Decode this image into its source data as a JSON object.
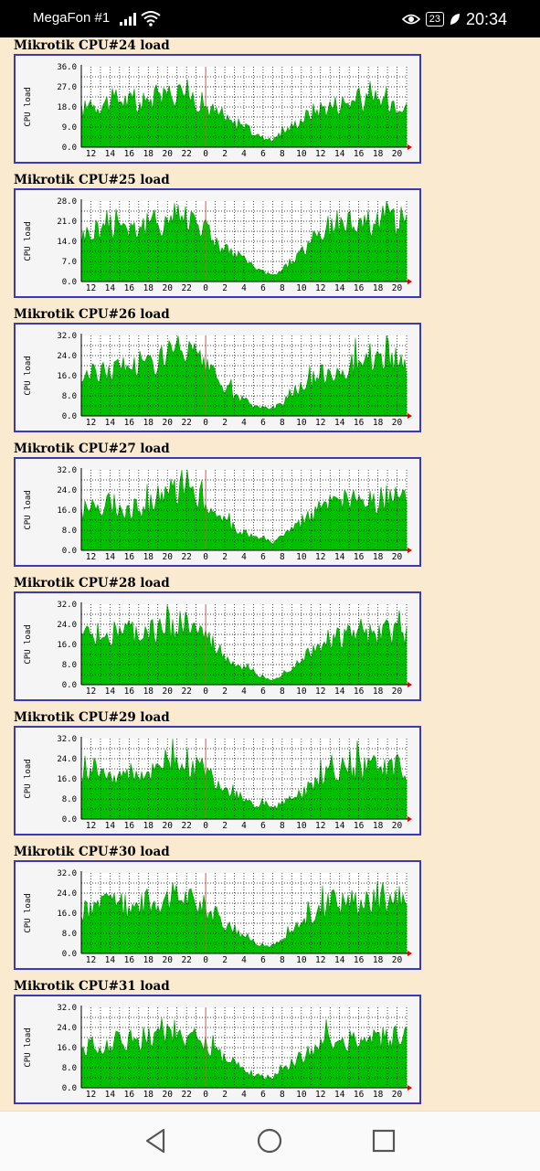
{
  "status_bar": {
    "carrier": "MegaFon #1",
    "battery": "23",
    "time": "20:34",
    "icons": [
      "signal-icon",
      "wifi-icon",
      "eye-icon",
      "battery-icon",
      "leaf-icon"
    ]
  },
  "nav_bar": {
    "icons": [
      "back-icon",
      "home-icon",
      "recents-icon"
    ]
  },
  "colors": {
    "fill": "#00c000",
    "edge": "#00a000",
    "frame": "#3a3ab8",
    "now_line": "#e05050",
    "background": "#faebd0"
  },
  "chart_data": [
    {
      "type": "area",
      "title": "Mikrotik CPU#24 load",
      "ylabel": "CPU load",
      "yticks": [
        "0.0",
        "9.0",
        "18.0",
        "27.0",
        "36.0"
      ],
      "ylim": [
        0,
        36
      ],
      "xticks": [
        "12",
        "14",
        "16",
        "18",
        "20",
        "22",
        "0",
        "2",
        "4",
        "6",
        "8",
        "10",
        "12",
        "14",
        "16",
        "18",
        "20"
      ],
      "x_hours": [
        11,
        12,
        13,
        14,
        15,
        16,
        17,
        18,
        19,
        20,
        21,
        22,
        23,
        0,
        1,
        2,
        3,
        4,
        5,
        6,
        7,
        8,
        9,
        10,
        11,
        12,
        13,
        14,
        15,
        16,
        17,
        18,
        19,
        20,
        21
      ],
      "values": [
        16,
        18,
        19,
        20,
        21,
        20,
        18,
        20,
        22,
        23,
        24,
        24,
        21,
        18,
        15,
        12,
        10,
        9,
        6,
        4,
        3,
        6,
        9,
        12,
        15,
        17,
        18,
        19,
        20,
        20,
        19,
        20,
        21,
        20,
        20
      ],
      "grid": true
    },
    {
      "type": "area",
      "title": "Mikrotik CPU#25 load",
      "ylabel": "CPU load",
      "yticks": [
        "0.0",
        "7.0",
        "14.0",
        "21.0",
        "28.0"
      ],
      "ylim": [
        0,
        28
      ],
      "xticks": [
        "12",
        "14",
        "16",
        "18",
        "20",
        "22",
        "0",
        "2",
        "4",
        "6",
        "8",
        "10",
        "12",
        "14",
        "16",
        "18",
        "20"
      ],
      "x_hours": [
        11,
        12,
        13,
        14,
        15,
        16,
        17,
        18,
        19,
        20,
        21,
        22,
        23,
        0,
        1,
        2,
        3,
        4,
        5,
        6,
        7,
        8,
        9,
        10,
        11,
        12,
        13,
        14,
        15,
        16,
        17,
        18,
        19,
        20,
        21
      ],
      "values": [
        15,
        17,
        18,
        19,
        20,
        19,
        18,
        19,
        20,
        21,
        22,
        22,
        21,
        18,
        14,
        11,
        9,
        7,
        5,
        3,
        2,
        4,
        7,
        10,
        13,
        16,
        18,
        19,
        20,
        21,
        20,
        21,
        22,
        21,
        20
      ],
      "grid": true
    },
    {
      "type": "area",
      "title": "Mikrotik CPU#26 load",
      "ylabel": "CPU load",
      "yticks": [
        "0.0",
        "8.0",
        "16.0",
        "24.0",
        "32.0"
      ],
      "ylim": [
        0,
        32
      ],
      "xticks": [
        "12",
        "14",
        "16",
        "18",
        "20",
        "22",
        "0",
        "2",
        "4",
        "6",
        "8",
        "10",
        "12",
        "14",
        "16",
        "18",
        "20"
      ],
      "x_hours": [
        11,
        12,
        13,
        14,
        15,
        16,
        17,
        18,
        19,
        20,
        21,
        22,
        23,
        0,
        1,
        2,
        3,
        4,
        5,
        6,
        7,
        8,
        9,
        10,
        11,
        12,
        13,
        14,
        15,
        16,
        17,
        18,
        19,
        20,
        21
      ],
      "values": [
        14,
        16,
        17,
        18,
        19,
        20,
        19,
        20,
        22,
        24,
        25,
        25,
        22,
        18,
        15,
        11,
        8,
        6,
        4,
        3,
        3,
        5,
        8,
        11,
        13,
        16,
        17,
        18,
        19,
        20,
        20,
        21,
        22,
        21,
        20
      ],
      "grid": true
    },
    {
      "type": "area",
      "title": "Mikrotik CPU#27 load",
      "ylabel": "CPU load",
      "yticks": [
        "0.0",
        "8.0",
        "16.0",
        "24.0",
        "32.0"
      ],
      "ylim": [
        0,
        32
      ],
      "xticks": [
        "12",
        "14",
        "16",
        "18",
        "20",
        "22",
        "0",
        "2",
        "4",
        "6",
        "8",
        "10",
        "12",
        "14",
        "16",
        "18",
        "20"
      ],
      "x_hours": [
        11,
        12,
        13,
        14,
        15,
        16,
        17,
        18,
        19,
        20,
        21,
        22,
        23,
        0,
        1,
        2,
        3,
        4,
        5,
        6,
        7,
        8,
        9,
        10,
        11,
        12,
        13,
        14,
        15,
        16,
        17,
        18,
        19,
        20,
        21
      ],
      "values": [
        15,
        17,
        18,
        18,
        17,
        16,
        16,
        18,
        20,
        22,
        24,
        24,
        22,
        18,
        14,
        11,
        9,
        7,
        5,
        4,
        3,
        5,
        8,
        11,
        14,
        16,
        17,
        18,
        19,
        19,
        18,
        19,
        20,
        20,
        19
      ],
      "grid": true
    },
    {
      "type": "area",
      "title": "Mikrotik CPU#28 load",
      "ylabel": "CPU load",
      "yticks": [
        "0.0",
        "8.0",
        "16.0",
        "24.0",
        "32.0"
      ],
      "ylim": [
        0,
        32
      ],
      "xticks": [
        "12",
        "14",
        "16",
        "18",
        "20",
        "22",
        "0",
        "2",
        "4",
        "6",
        "8",
        "10",
        "12",
        "14",
        "16",
        "18",
        "20"
      ],
      "x_hours": [
        11,
        12,
        13,
        14,
        15,
        16,
        17,
        18,
        19,
        20,
        21,
        22,
        23,
        0,
        1,
        2,
        3,
        4,
        5,
        6,
        7,
        8,
        9,
        10,
        11,
        12,
        13,
        14,
        15,
        16,
        17,
        18,
        19,
        20,
        21
      ],
      "values": [
        17,
        19,
        20,
        20,
        21,
        20,
        19,
        20,
        21,
        22,
        23,
        23,
        21,
        18,
        14,
        11,
        8,
        6,
        4,
        3,
        2,
        4,
        7,
        10,
        13,
        16,
        17,
        18,
        19,
        19,
        18,
        19,
        20,
        20,
        20
      ],
      "grid": true
    },
    {
      "type": "area",
      "title": "Mikrotik CPU#29 load",
      "ylabel": "CPU load",
      "yticks": [
        "0.0",
        "8.0",
        "16.0",
        "24.0",
        "32.0"
      ],
      "ylim": [
        0,
        32
      ],
      "xticks": [
        "12",
        "14",
        "16",
        "18",
        "20",
        "22",
        "0",
        "2",
        "4",
        "6",
        "8",
        "10",
        "12",
        "14",
        "16",
        "18",
        "20"
      ],
      "x_hours": [
        11,
        12,
        13,
        14,
        15,
        16,
        17,
        18,
        19,
        20,
        21,
        22,
        23,
        0,
        1,
        2,
        3,
        4,
        5,
        6,
        7,
        8,
        9,
        10,
        11,
        12,
        13,
        14,
        15,
        16,
        17,
        18,
        19,
        20,
        21
      ],
      "values": [
        17,
        19,
        19,
        18,
        17,
        16,
        17,
        19,
        21,
        22,
        23,
        22,
        20,
        18,
        15,
        12,
        10,
        8,
        6,
        5,
        4,
        6,
        8,
        10,
        13,
        16,
        18,
        19,
        20,
        20,
        19,
        20,
        21,
        20,
        19
      ],
      "grid": true
    },
    {
      "type": "area",
      "title": "Mikrotik CPU#30 load",
      "ylabel": "CPU load",
      "yticks": [
        "0.0",
        "8.0",
        "16.0",
        "24.0",
        "32.0"
      ],
      "ylim": [
        0,
        32
      ],
      "xticks": [
        "12",
        "14",
        "16",
        "18",
        "20",
        "22",
        "0",
        "2",
        "4",
        "6",
        "8",
        "10",
        "12",
        "14",
        "16",
        "18",
        "20"
      ],
      "x_hours": [
        11,
        12,
        13,
        14,
        15,
        16,
        17,
        18,
        19,
        20,
        21,
        22,
        23,
        0,
        1,
        2,
        3,
        4,
        5,
        6,
        7,
        8,
        9,
        10,
        11,
        12,
        13,
        14,
        15,
        16,
        17,
        18,
        19,
        20,
        21
      ],
      "values": [
        16,
        18,
        19,
        19,
        18,
        18,
        19,
        20,
        21,
        22,
        22,
        22,
        20,
        18,
        15,
        12,
        9,
        7,
        5,
        3,
        3,
        5,
        8,
        11,
        14,
        17,
        19,
        20,
        21,
        21,
        20,
        21,
        21,
        21,
        20
      ],
      "grid": true
    },
    {
      "type": "area",
      "title": "Mikrotik CPU#31 load",
      "ylabel": "CPU load",
      "yticks": [
        "0.0",
        "8.0",
        "16.0",
        "24.0",
        "32.0"
      ],
      "ylim": [
        0,
        32
      ],
      "xticks": [
        "12",
        "14",
        "16",
        "18",
        "20",
        "22",
        "0",
        "2",
        "4",
        "6",
        "8",
        "10",
        "12",
        "14",
        "16",
        "18",
        "20"
      ],
      "x_hours": [
        11,
        12,
        13,
        14,
        15,
        16,
        17,
        18,
        19,
        20,
        21,
        22,
        23,
        0,
        1,
        2,
        3,
        4,
        5,
        6,
        7,
        8,
        9,
        10,
        11,
        12,
        13,
        14,
        15,
        16,
        17,
        18,
        19,
        20,
        21
      ],
      "values": [
        14,
        16,
        17,
        18,
        18,
        18,
        19,
        20,
        21,
        22,
        22,
        21,
        19,
        17,
        14,
        11,
        9,
        7,
        5,
        4,
        4,
        6,
        9,
        12,
        14,
        16,
        17,
        18,
        19,
        19,
        19,
        20,
        21,
        21,
        21
      ],
      "grid": true
    }
  ]
}
